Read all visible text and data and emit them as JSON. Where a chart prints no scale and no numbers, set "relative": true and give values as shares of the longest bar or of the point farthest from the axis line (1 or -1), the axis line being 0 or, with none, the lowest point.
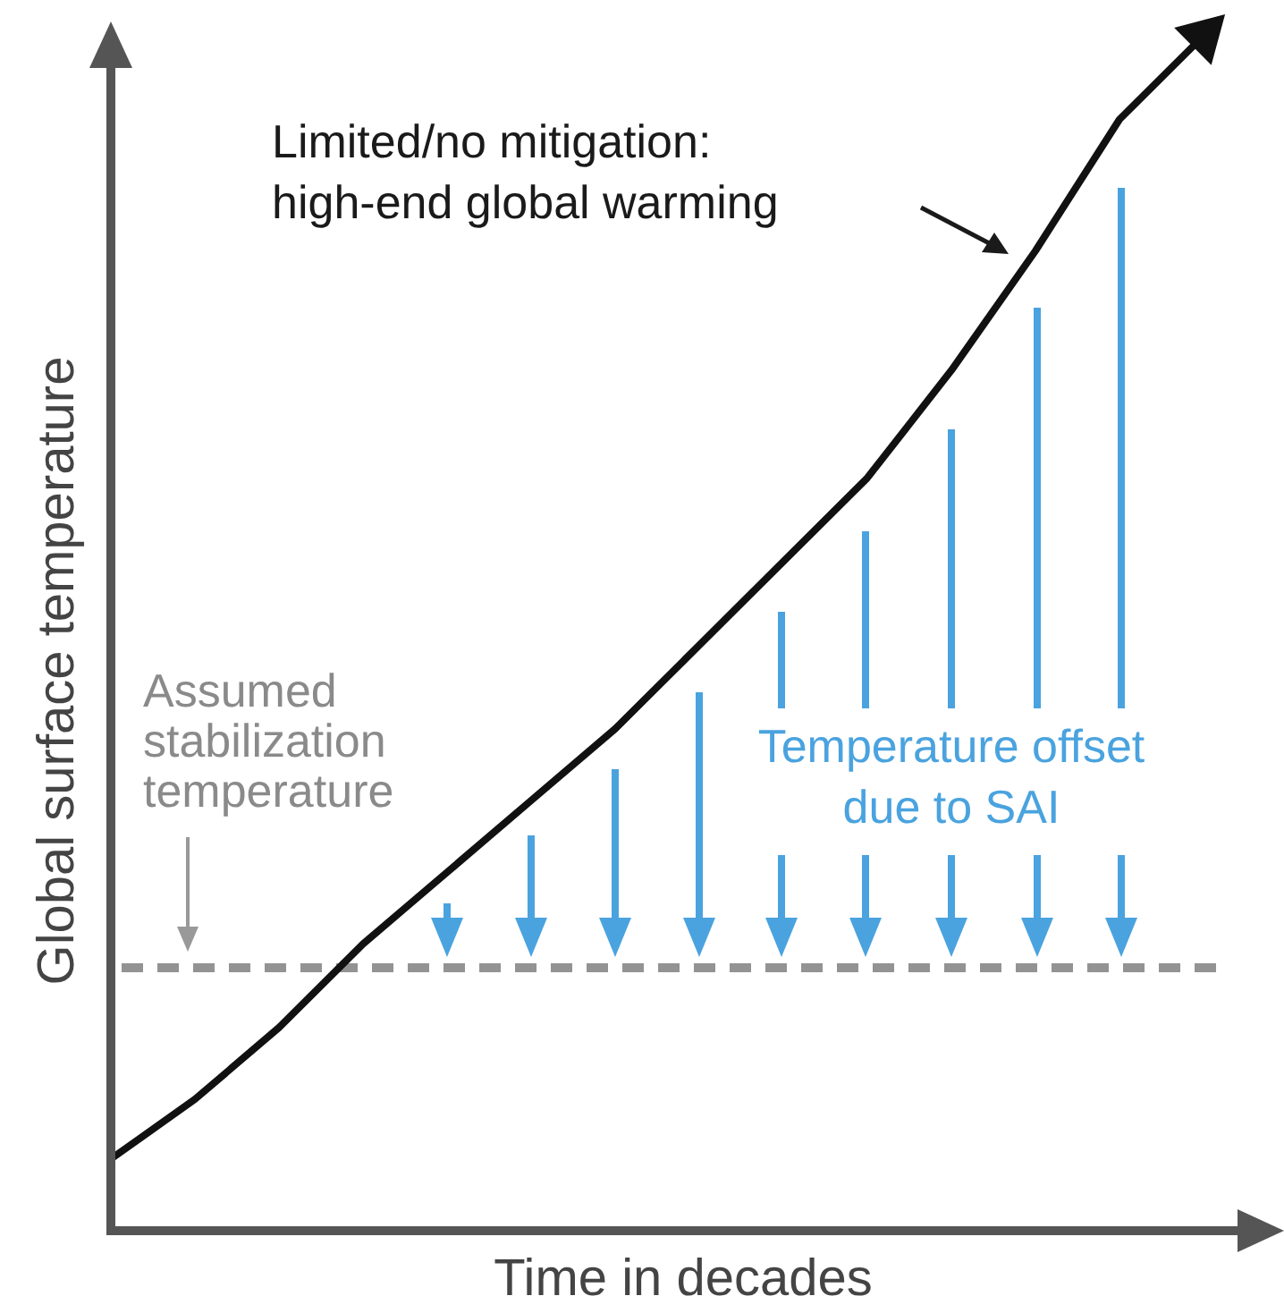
{
  "chart_data": {
    "type": "line",
    "relative": true,
    "ylabel": "Global surface temperature",
    "xlabel": "Time in decades",
    "categories": [
      null,
      null,
      null,
      null,
      null,
      null,
      null,
      null,
      null,
      null,
      null,
      null,
      null,
      null
    ],
    "series": [
      {
        "color": "#111111",
        "values": [
          0.06,
          0.11,
          0.17,
          0.24,
          0.3,
          0.36,
          0.42,
          0.49,
          0.56,
          0.63,
          0.72,
          0.82,
          0.93,
          1.0
        ]
      }
    ],
    "ref_lines": [
      {
        "axis": "y",
        "value": 0.22,
        "label": "Assumed\nstabilization\ntemperature",
        "color": "#939393",
        "line_style": "dashed"
      }
    ],
    "annotations": [
      "Limited/no mitigation:\nhigh-end global warming",
      "Temperature offset\ndue to SAI"
    ],
    "legend": false,
    "grid": false
  }
}
